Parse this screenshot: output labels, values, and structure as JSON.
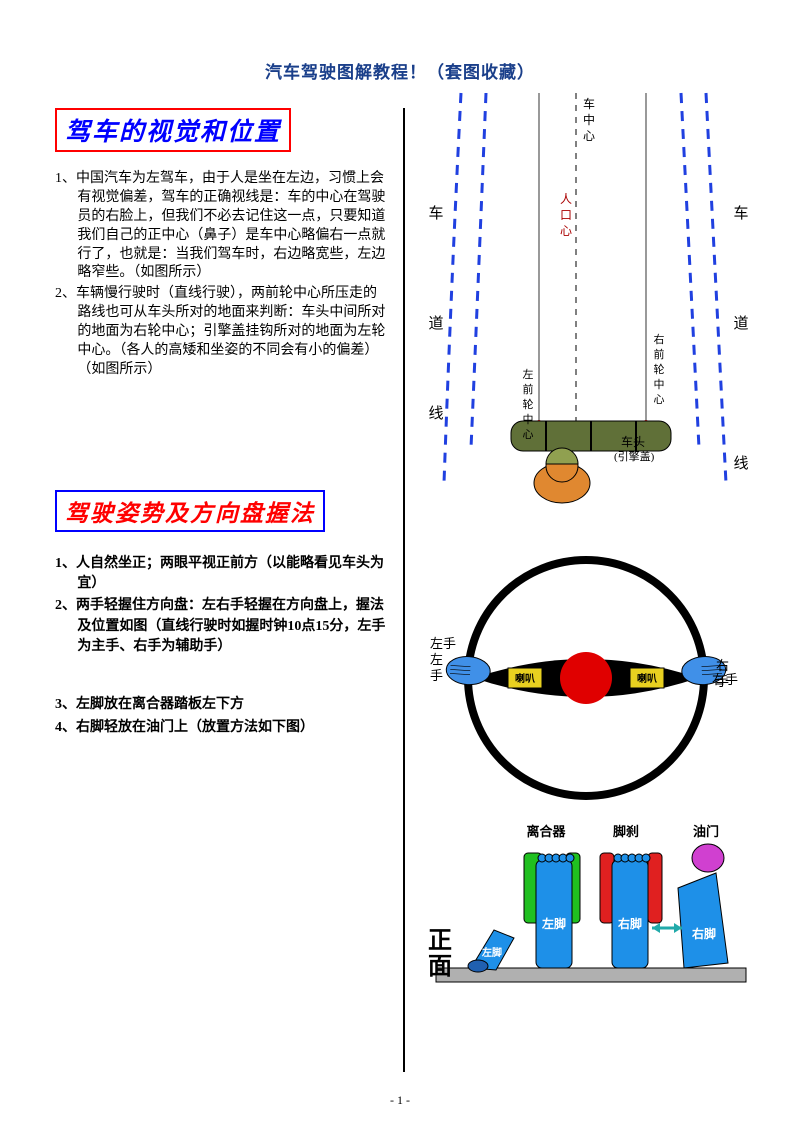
{
  "page": {
    "title": "汽车驾驶图解教程！（套图收藏）",
    "title_color": "#1a3f8a",
    "page_number": "- 1 -"
  },
  "section1": {
    "heading": "驾车的视觉和位置",
    "heading_color": "#0000ff",
    "heading_border": "#ff0000",
    "heading_fontsize": 25,
    "p1": "1、中国汽车为左驾车，由于人是坐在左边，习惯上会有视觉偏差，驾车的正确视线是：车的中心在驾驶员的右脸上，但我们不必去记住这一点，只要知道我们自己的正中心（鼻子）是车中心略偏右一点就行了，也就是：当我们驾车时，右边略宽些，左边略窄些。（如图所示）",
    "p2": "2、车辆慢行驶时（直线行驶），两前轮中心所压走的路线也可从车头所对的地面来判断：车头中间所对的地面为右轮中心；引擎盖挂钩所对的地面为左轮中心。（各人的高矮和坐姿的不同会有小的偏差）（如图所示）"
  },
  "section2": {
    "heading": "驾驶姿势及方向盘握法",
    "heading_color": "#ff0000",
    "heading_border": "#0000ff",
    "heading_fontsize": 23,
    "p1": "1、人自然坐正；两眼平视正前方（以能略看见车头为宜）",
    "p2": "2、两手轻握住方向盘：左右手轻握在方向盘上，握法及位置如图（直线行驶时如握时钟10点15分，左手为主手、右手为辅助手）",
    "p3": "3、左脚放在离合器踏板左下方",
    "p4": "4、右脚轻放在油门上（放置方法如下图）"
  },
  "diagram_lane": {
    "lane_color": "#2040e0",
    "car_color": "#607038",
    "head_fill": "#e08830",
    "helmet_fill": "#90a050",
    "labels": {
      "che": "车",
      "dao": "道",
      "xian": "线",
      "che_zhong_xin_v": "车中心",
      "ren_zhong_xin_v": "人口心",
      "left_wheel": "左前轮中心",
      "right_wheel": "右前轮中心",
      "hood": "车头\n(引擎盖)"
    }
  },
  "diagram_wheel": {
    "ring_color": "#000000",
    "hub_color": "#000000",
    "center_color": "#e00000",
    "hand_color": "#4090e8",
    "horn_bg": "#e8d020",
    "labels": {
      "left_hand": "左手",
      "right_hand": "右手",
      "horn": "喇叭"
    }
  },
  "diagram_pedals": {
    "foot_color": "#1e90e8",
    "clutch_color": "#20c020",
    "brake_color": "#e02020",
    "gas_color": "#d040d0",
    "floor_color": "#b0b0b0",
    "labels": {
      "clutch": "离合器",
      "brake": "脚刹",
      "gas": "油门",
      "front": "正面",
      "left_foot": "左脚",
      "right_foot": "右脚"
    }
  }
}
